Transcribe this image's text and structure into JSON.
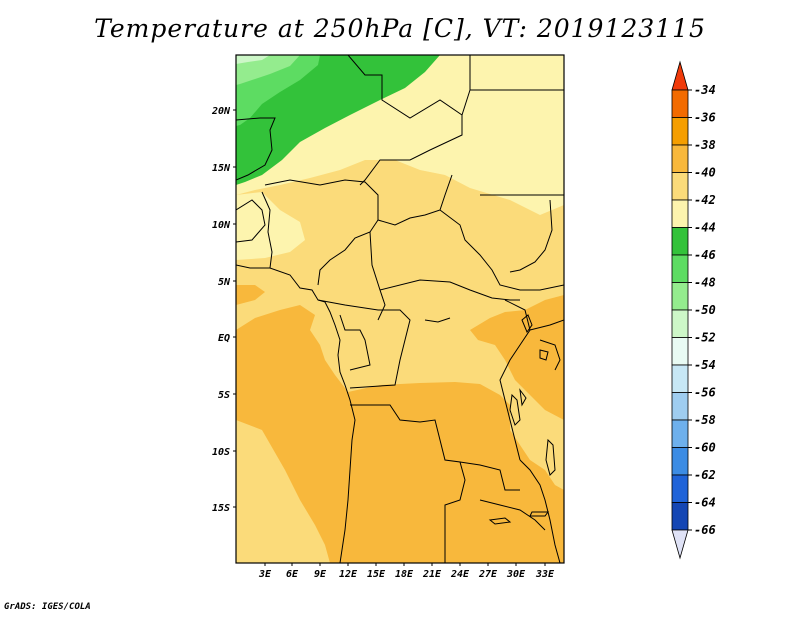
{
  "title": "Temperature at 250hPa [C], VT: 2019123115",
  "credit": "GrADS: IGES/COLA",
  "map": {
    "lat_labels": [
      "20N",
      "15N",
      "10N",
      "5N",
      "EQ",
      "5S",
      "10S",
      "15S"
    ],
    "lon_labels": [
      "3E",
      "6E",
      "9E",
      "12E",
      "15E",
      "18E",
      "21E",
      "24E",
      "27E",
      "30E",
      "33E"
    ]
  },
  "colorbar": {
    "labels": [
      "-34",
      "-36",
      "-38",
      "-40",
      "-42",
      "-44",
      "-46",
      "-48",
      "-50",
      "-52",
      "-54",
      "-56",
      "-58",
      "-60",
      "-62",
      "-64",
      "-66"
    ],
    "colors": [
      "#f03a0a",
      "#f26b00",
      "#f59e00",
      "#f8b83c",
      "#fbdb7a",
      "#fdf4ae",
      "#33c23a",
      "#5ddc62",
      "#94ec8e",
      "#cdf7c8",
      "#e9fbf4",
      "#c7e7f5",
      "#9fcdf0",
      "#6eb0ec",
      "#3c8ce4",
      "#1f63d8",
      "#1446b4",
      "#0c1c80",
      "#dfe2f6"
    ]
  }
}
